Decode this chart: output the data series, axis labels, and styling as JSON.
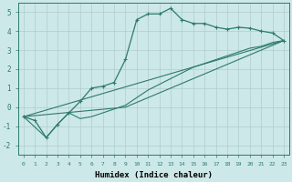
{
  "xlabel": "Humidex (Indice chaleur)",
  "background_color": "#cde8e8",
  "line_color": "#2d7a6e",
  "grid_color": "#b0cccc",
  "ylim": [
    -2.5,
    5.5
  ],
  "xlim": [
    -0.5,
    23.5
  ],
  "main_x": [
    0,
    1,
    2,
    3,
    4,
    5,
    6,
    7,
    8,
    9,
    10,
    11,
    12,
    13,
    14,
    15,
    16,
    17,
    18,
    19,
    20,
    21,
    22,
    23
  ],
  "main_y": [
    -0.5,
    -0.7,
    -1.6,
    -0.9,
    -0.3,
    0.3,
    1.0,
    1.1,
    1.3,
    2.5,
    4.6,
    4.9,
    4.9,
    5.2,
    4.6,
    4.4,
    4.4,
    4.2,
    4.1,
    4.2,
    4.15,
    4.0,
    3.9,
    3.5
  ],
  "line2_x": [
    0,
    2,
    3,
    4,
    5,
    6,
    7,
    8,
    9,
    10,
    11,
    12,
    13,
    14,
    15,
    16,
    17,
    18,
    19,
    20,
    21,
    22,
    23
  ],
  "line2_y": [
    -0.5,
    -1.6,
    -0.9,
    -0.3,
    -0.6,
    -0.5,
    -0.3,
    -0.1,
    0.1,
    0.5,
    0.9,
    1.2,
    1.5,
    1.8,
    2.1,
    2.3,
    2.5,
    2.7,
    2.9,
    3.1,
    3.2,
    3.4,
    3.5
  ],
  "line3_x": [
    0,
    23
  ],
  "line3_y": [
    -0.5,
    3.5
  ],
  "line4_x": [
    0,
    9,
    23
  ],
  "line4_y": [
    -0.5,
    0.0,
    3.5
  ],
  "yticks": [
    -2,
    -1,
    0,
    1,
    2,
    3,
    4,
    5
  ],
  "xticks": [
    0,
    1,
    2,
    3,
    4,
    5,
    6,
    7,
    8,
    9,
    10,
    11,
    12,
    13,
    14,
    15,
    16,
    17,
    18,
    19,
    20,
    21,
    22,
    23
  ]
}
